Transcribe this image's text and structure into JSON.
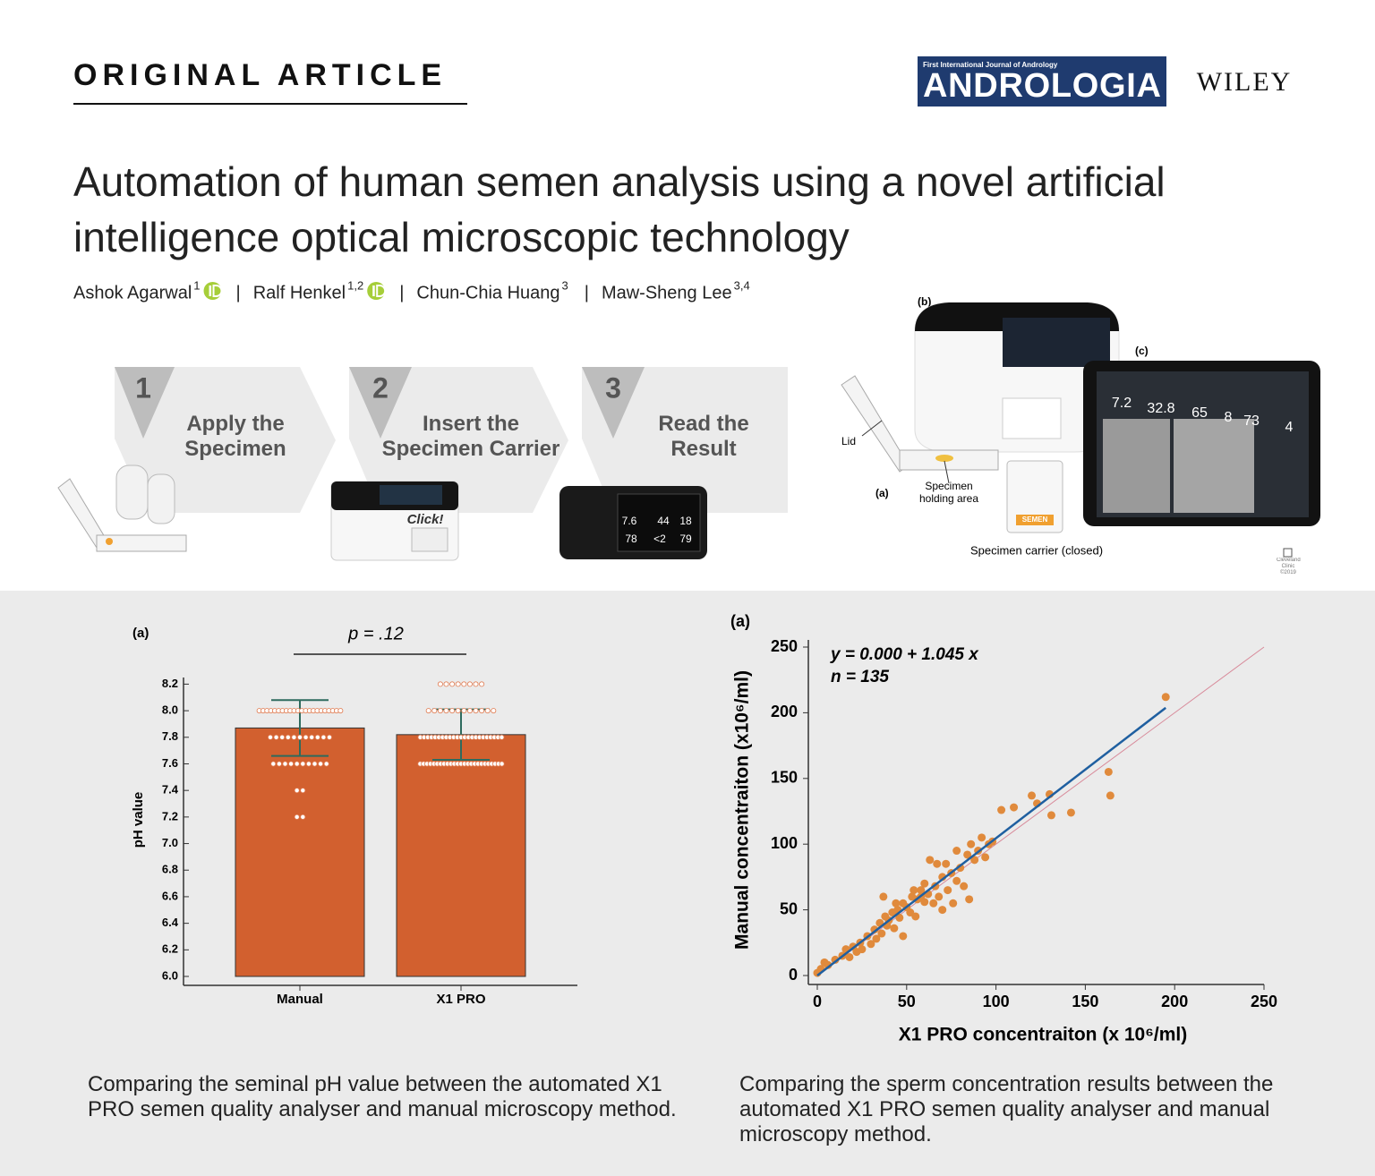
{
  "header": {
    "article_type": "ORIGINAL ARTICLE",
    "journal_tagline": "First International Journal of Andrology",
    "journal": "ANDROLOGIA",
    "publisher": "WILEY"
  },
  "title": "Automation of human semen analysis using a novel artificial intelligence optical microscopic technology",
  "authors": [
    {
      "name": "Ashok Agarwal",
      "affiliation": "1",
      "orcid": true
    },
    {
      "name": "Ralf Henkel",
      "affiliation": "1,2",
      "orcid": true
    },
    {
      "name": "Chun-Chia Huang",
      "affiliation": "3",
      "orcid": false
    },
    {
      "name": "Maw-Sheng Lee",
      "affiliation": "3,4",
      "orcid": false
    }
  ],
  "author_separator": "|",
  "steps": [
    {
      "number": "1",
      "label": "Apply the Specimen"
    },
    {
      "number": "2",
      "label": "Insert the Specimen Carrier"
    },
    {
      "number": "3",
      "label": "Read the Result"
    }
  ],
  "figure": {
    "label_b": "(b)",
    "label_c": "(c)",
    "label_a": "(a)",
    "lid": "Lid",
    "holding": "Specimen holding area",
    "carrier": "Specimen carrier (closed)",
    "credit": "Cleveland Clinic ©2019",
    "click": "Click!",
    "carrier_tag": "SEMEN",
    "step3_screen": [
      "7.6",
      "44",
      "18",
      "78",
      "<2",
      "79"
    ],
    "device_screen": [
      "7.2",
      "32.8",
      "65",
      "8",
      "73",
      "4"
    ]
  },
  "chart_data": [
    {
      "type": "bar",
      "panel_label": "(a)",
      "annotation": "p = .12",
      "categories": [
        "Manual",
        "X1 PRO"
      ],
      "values": [
        7.87,
        7.82
      ],
      "errors": [
        0.21,
        0.19
      ],
      "color": "#d2602f",
      "error_color": "#2e6b5e",
      "dot_color": "#e07a4f",
      "ylabel": "pH value",
      "ylim": [
        6,
        8.25
      ],
      "yticks": [
        {
          "value": 6,
          "label": "6.0"
        },
        6.2,
        6.4,
        6.6,
        6.8,
        {
          "value": 7,
          "label": "7.0"
        },
        7.2,
        7.4,
        7.6,
        7.8,
        {
          "value": 8,
          "label": "8.0"
        },
        8.2
      ],
      "dots": [
        {
          "values": [
            8,
            7.8,
            7.6,
            7.4,
            7.2
          ],
          "counts": [
            22,
            11,
            10,
            2,
            2
          ]
        },
        {
          "values": [
            8.2,
            8,
            7.8,
            7.6
          ],
          "counts": [
            8,
            12,
            23,
            25
          ]
        }
      ]
    },
    {
      "type": "scatter",
      "panel_label": "(a)",
      "equation": "y = 0.000  +  1.045  x",
      "n_label": "n = 135",
      "xlabel": "X1 PRO concentraiton (x 10⁶/ml)",
      "ylabel": "Manual concentraiton (x10⁶/ml)",
      "xlim": [
        0,
        250
      ],
      "ylim": [
        0,
        250
      ],
      "xticks": [
        0,
        50,
        100,
        150,
        200,
        250
      ],
      "yticks": [
        0,
        50,
        100,
        150,
        200,
        250
      ],
      "color": "#e08a3c",
      "x": [
        0,
        2,
        4,
        6,
        10,
        14,
        16,
        18,
        20,
        22,
        24,
        25,
        28,
        30,
        32,
        33,
        35,
        36,
        38,
        39,
        40,
        42,
        43,
        45,
        46,
        48,
        48,
        50,
        52,
        53,
        55,
        56,
        58,
        60,
        60,
        62,
        63,
        65,
        66,
        68,
        70,
        70,
        72,
        73,
        75,
        76,
        78,
        80,
        82,
        84,
        85,
        86,
        88,
        90,
        92,
        94,
        96,
        98,
        103,
        110,
        120,
        123,
        130,
        131,
        142,
        163,
        164,
        195,
        37,
        67,
        78,
        44,
        58,
        54
      ],
      "y": [
        2,
        5,
        10,
        8,
        12,
        15,
        20,
        14,
        22,
        18,
        25,
        20,
        30,
        24,
        35,
        28,
        40,
        32,
        45,
        38,
        42,
        48,
        36,
        50,
        44,
        55,
        30,
        52,
        48,
        60,
        45,
        58,
        65,
        56,
        70,
        62,
        88,
        55,
        68,
        60,
        75,
        50,
        85,
        65,
        78,
        55,
        72,
        82,
        68,
        92,
        58,
        100,
        88,
        95,
        105,
        90,
        100,
        102,
        126,
        128,
        137,
        131,
        138,
        122,
        124,
        155,
        137,
        212,
        60,
        85,
        95,
        55,
        60,
        65
      ],
      "fit": {
        "intercept": 0,
        "slope": 1.045,
        "x_end": 195,
        "color": "#1f5fa0"
      },
      "identity_color": "#d88a9a"
    }
  ],
  "captions": [
    "Comparing the seminal pH value between the automated X1 PRO semen quality analyser and manual microscopy method.",
    "Comparing the sperm concentration results between the automated X1 PRO semen quality analyser and manual microscopy method."
  ]
}
